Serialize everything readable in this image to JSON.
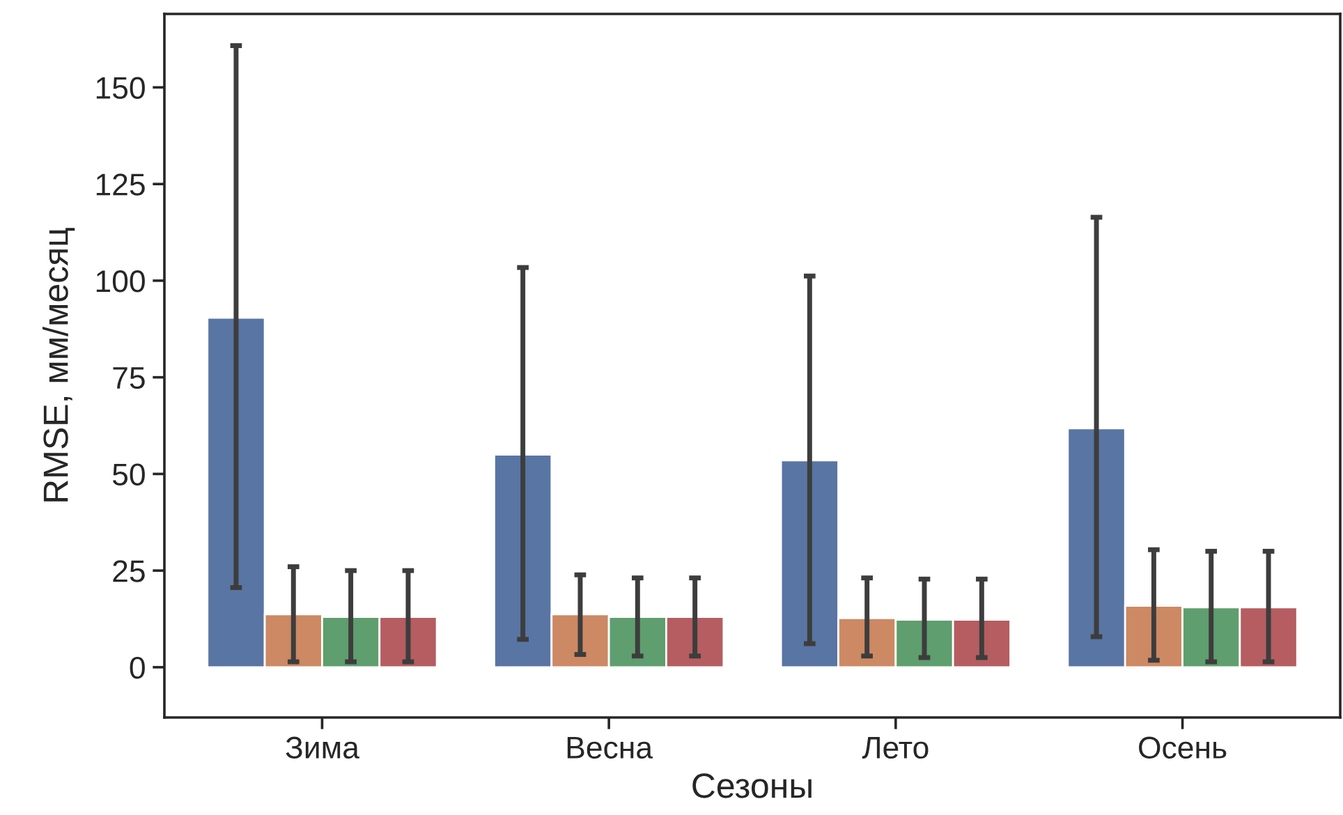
{
  "chart_data": {
    "type": "bar",
    "xlabel": "Сезоны",
    "ylabel": "RMSE, мм/месяц",
    "categories": [
      "Зима",
      "Весна",
      "Лето",
      "Осень"
    ],
    "series": [
      {
        "color": "#5975a4",
        "values": [
          90.4,
          55,
          53.5,
          61.8
        ],
        "errors": [
          [
            20.6,
            160.8
          ],
          [
            7.2,
            103.4
          ],
          [
            6.1,
            101.2
          ],
          [
            7.9,
            116.4
          ]
        ]
      },
      {
        "color": "#cc8963",
        "values": [
          13.7,
          13.7,
          12.7,
          15.9
        ],
        "errors": [
          [
            1.4,
            26
          ],
          [
            3.3,
            23.9
          ],
          [
            2.9,
            23.1
          ],
          [
            1.8,
            30.4
          ]
        ]
      },
      {
        "color": "#5f9e6e",
        "values": [
          13,
          13,
          12.3,
          15.5
        ],
        "errors": [
          [
            1.4,
            25
          ],
          [
            2.9,
            23.1
          ],
          [
            2.5,
            22.8
          ],
          [
            1.4,
            30
          ]
        ]
      },
      {
        "color": "#b55d60",
        "values": [
          13,
          13,
          12.3,
          15.5
        ],
        "errors": [
          [
            1.4,
            25
          ],
          [
            2.9,
            23.1
          ],
          [
            2.5,
            22.8
          ],
          [
            1.4,
            30
          ]
        ]
      }
    ],
    "ylim": [
      -13,
      169
    ],
    "yticks": [
      0,
      25,
      50,
      75,
      100,
      125,
      150
    ],
    "grid": false
  }
}
